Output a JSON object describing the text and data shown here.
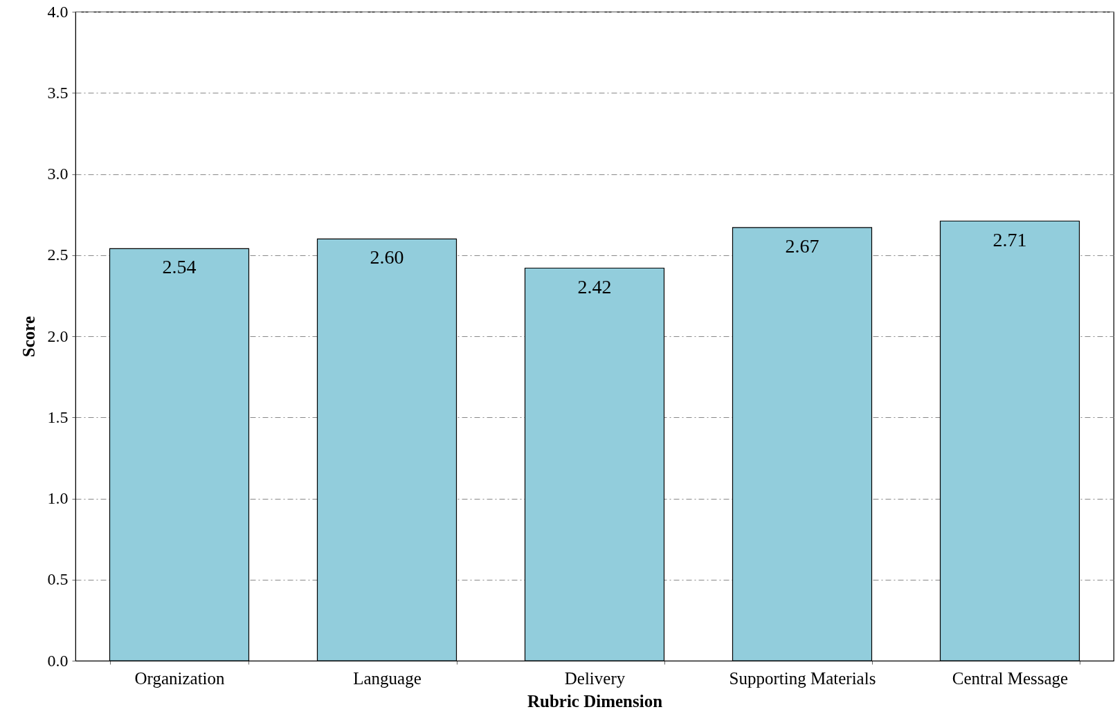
{
  "chart_data": {
    "type": "bar",
    "xlabel": "Rubric Dimension",
    "ylabel": "Score",
    "categories": [
      "Organization",
      "Language",
      "Delivery",
      "Supporting Materials",
      "Central Message"
    ],
    "values": [
      2.54,
      2.6,
      2.42,
      2.67,
      2.71
    ],
    "value_labels": [
      "2.54",
      "2.60",
      "2.42",
      "2.67",
      "2.71"
    ],
    "color": "#92cddc",
    "ylim": [
      0,
      4
    ],
    "yticks": [
      {
        "value": 0,
        "label": "0.0"
      },
      {
        "value": 0.5,
        "label": "0.5"
      },
      {
        "value": 1,
        "label": "1.0"
      },
      {
        "value": 1.5,
        "label": "1.5"
      },
      {
        "value": 2,
        "label": "2.0"
      },
      {
        "value": 2.5,
        "label": "2.5"
      },
      {
        "value": 3,
        "label": "3.0"
      },
      {
        "value": 3.5,
        "label": "3.5"
      },
      {
        "value": 4,
        "label": "4.0"
      }
    ],
    "grid": "y"
  }
}
